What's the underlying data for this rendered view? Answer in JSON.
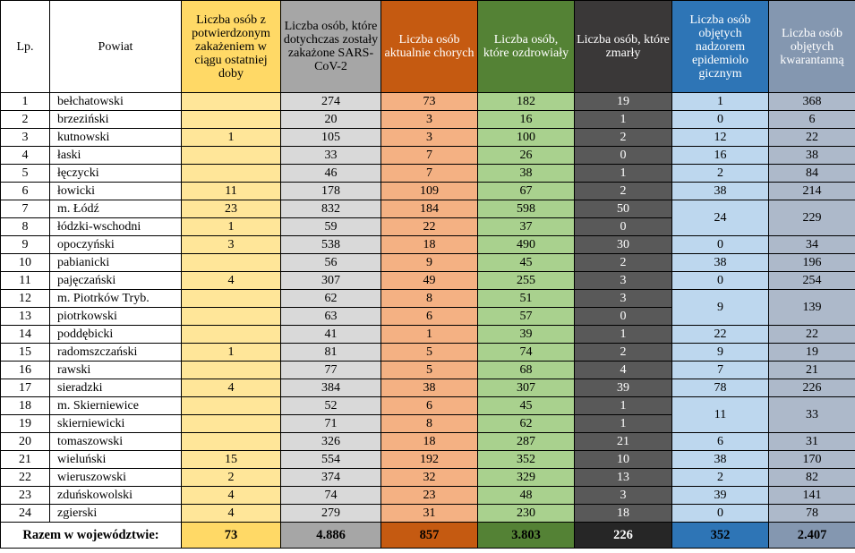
{
  "headers": {
    "lp": "Lp.",
    "powiat": "Powiat",
    "new_cases": "Liczba osób z potwierdzonym zakażeniem w ciągu ostatniej doby",
    "total_infected": "Liczba osób, które dotychczas zostały zakażone SARS-CoV-2",
    "currently_sick": "Liczba osób aktualnie chorych",
    "recovered": "Liczba osób, które ozdrowiały",
    "deceased": "Liczba osób, które zmarły",
    "epi_supervision": "Liczba osób objętych nadzorem epidemiolo gicznym",
    "quarantine": "Liczba osób objętych kwarantanną"
  },
  "rows": [
    {
      "lp": "1",
      "powiat": "bełchatowski",
      "new": "",
      "total": "274",
      "sick": "73",
      "recovered": "182",
      "deceased": "19",
      "epi": "1",
      "quar": "368"
    },
    {
      "lp": "2",
      "powiat": "brzeziński",
      "new": "",
      "total": "20",
      "sick": "3",
      "recovered": "16",
      "deceased": "1",
      "epi": "0",
      "quar": "6"
    },
    {
      "lp": "3",
      "powiat": "kutnowski",
      "new": "1",
      "total": "105",
      "sick": "3",
      "recovered": "100",
      "deceased": "2",
      "epi": "12",
      "quar": "22"
    },
    {
      "lp": "4",
      "powiat": "łaski",
      "new": "",
      "total": "33",
      "sick": "7",
      "recovered": "26",
      "deceased": "0",
      "epi": "16",
      "quar": "38"
    },
    {
      "lp": "5",
      "powiat": "łęczycki",
      "new": "",
      "total": "46",
      "sick": "7",
      "recovered": "38",
      "deceased": "1",
      "epi": "2",
      "quar": "84"
    },
    {
      "lp": "6",
      "powiat": "łowicki",
      "new": "11",
      "total": "178",
      "sick": "109",
      "recovered": "67",
      "deceased": "2",
      "epi": "38",
      "quar": "214"
    },
    {
      "lp": "7",
      "powiat": "m. Łódź",
      "new": "23",
      "total": "832",
      "sick": "184",
      "recovered": "598",
      "deceased": "50"
    },
    {
      "lp": "8",
      "powiat": "łódzki-wschodni",
      "new": "1",
      "total": "59",
      "sick": "22",
      "recovered": "37",
      "deceased": "0"
    },
    {
      "lp": "9",
      "powiat": "opoczyński",
      "new": "3",
      "total": "538",
      "sick": "18",
      "recovered": "490",
      "deceased": "30",
      "epi": "0",
      "quar": "34"
    },
    {
      "lp": "10",
      "powiat": "pabianicki",
      "new": "",
      "total": "56",
      "sick": "9",
      "recovered": "45",
      "deceased": "2",
      "epi": "38",
      "quar": "196"
    },
    {
      "lp": "11",
      "powiat": "pajęczański",
      "new": "4",
      "total": "307",
      "sick": "49",
      "recovered": "255",
      "deceased": "3",
      "epi": "0",
      "quar": "254"
    },
    {
      "lp": "12",
      "powiat": "m. Piotrków Tryb.",
      "new": "",
      "total": "62",
      "sick": "8",
      "recovered": "51",
      "deceased": "3"
    },
    {
      "lp": "13",
      "powiat": "piotrkowski",
      "new": "",
      "total": "63",
      "sick": "6",
      "recovered": "57",
      "deceased": "0"
    },
    {
      "lp": "14",
      "powiat": "poddębicki",
      "new": "",
      "total": "41",
      "sick": "1",
      "recovered": "39",
      "deceased": "1",
      "epi": "22",
      "quar": "22"
    },
    {
      "lp": "15",
      "powiat": "radomszczański",
      "new": "1",
      "total": "81",
      "sick": "5",
      "recovered": "74",
      "deceased": "2",
      "epi": "9",
      "quar": "19"
    },
    {
      "lp": "16",
      "powiat": "rawski",
      "new": "",
      "total": "77",
      "sick": "5",
      "recovered": "68",
      "deceased": "4",
      "epi": "7",
      "quar": "21"
    },
    {
      "lp": "17",
      "powiat": "sieradzki",
      "new": "4",
      "total": "384",
      "sick": "38",
      "recovered": "307",
      "deceased": "39",
      "epi": "78",
      "quar": "226"
    },
    {
      "lp": "18",
      "powiat": "m. Skierniewice",
      "new": "",
      "total": "52",
      "sick": "6",
      "recovered": "45",
      "deceased": "1"
    },
    {
      "lp": "19",
      "powiat": "skierniewicki",
      "new": "",
      "total": "71",
      "sick": "8",
      "recovered": "62",
      "deceased": "1"
    },
    {
      "lp": "20",
      "powiat": "tomaszowski",
      "new": "",
      "total": "326",
      "sick": "18",
      "recovered": "287",
      "deceased": "21",
      "epi": "6",
      "quar": "31"
    },
    {
      "lp": "21",
      "powiat": "wieluński",
      "new": "15",
      "total": "554",
      "sick": "192",
      "recovered": "352",
      "deceased": "10",
      "epi": "38",
      "quar": "170"
    },
    {
      "lp": "22",
      "powiat": "wieruszowski",
      "new": "2",
      "total": "374",
      "sick": "32",
      "recovered": "329",
      "deceased": "13",
      "epi": "2",
      "quar": "82"
    },
    {
      "lp": "23",
      "powiat": "zduńskowolski",
      "new": "4",
      "total": "74",
      "sick": "23",
      "recovered": "48",
      "deceased": "3",
      "epi": "39",
      "quar": "141"
    },
    {
      "lp": "24",
      "powiat": "zgierski",
      "new": "4",
      "total": "279",
      "sick": "31",
      "recovered": "230",
      "deceased": "18",
      "epi": "0",
      "quar": "78"
    }
  ],
  "merged": {
    "lodz_group": {
      "epi": "24",
      "quar": "229"
    },
    "piotrkow_group": {
      "epi": "9",
      "quar": "139"
    },
    "skierniewice_group": {
      "epi": "11",
      "quar": "33"
    }
  },
  "totals": {
    "label": "Razem w województwie:",
    "new": "73",
    "total": "4.886",
    "sick": "857",
    "recovered": "3.803",
    "deceased": "226",
    "epi": "352",
    "quar": "2.407"
  },
  "colors": {
    "new_header": "#ffd966",
    "total_header": "#a6a6a6",
    "sick_header": "#c55a11",
    "recovered_header": "#548235",
    "deceased_header": "#3a3838",
    "epi_header": "#2e75b6",
    "quarantine_header": "#8497b0"
  }
}
